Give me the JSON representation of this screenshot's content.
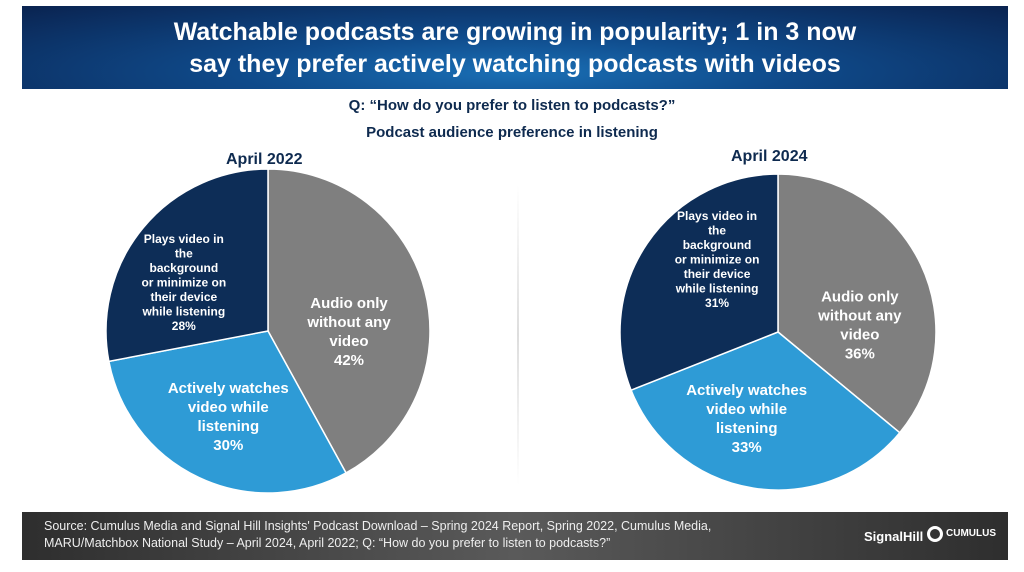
{
  "title": [
    "Watchable podcasts are growing in popularity; 1 in 3 now",
    "say they prefer actively watching podcasts with videos"
  ],
  "question": "Q: “How do you prefer to listen to podcasts?”",
  "subtitle": "Podcast audience preference in listening",
  "chart_data": [
    {
      "type": "pie",
      "title": "April 2022",
      "slices": [
        {
          "label": [
            "Audio only",
            "without any",
            "video"
          ],
          "value": 42,
          "value_label": "42%",
          "color": "#7f7f7f"
        },
        {
          "label": [
            "Actively watches",
            "video while",
            "listening"
          ],
          "value": 30,
          "value_label": "30%",
          "color": "#2e9bd6"
        },
        {
          "label": [
            "Plays video in",
            "the",
            "background",
            "or minimize on",
            "their device",
            "while listening"
          ],
          "value": 28,
          "value_label": "28%",
          "color": "#0d2d57"
        }
      ]
    },
    {
      "type": "pie",
      "title": "April 2024",
      "slices": [
        {
          "label": [
            "Audio only",
            "without any",
            "video"
          ],
          "value": 36,
          "value_label": "36%",
          "color": "#7f7f7f"
        },
        {
          "label": [
            "Actively watches",
            "video while",
            "listening"
          ],
          "value": 33,
          "value_label": "33%",
          "color": "#2e9bd6"
        },
        {
          "label": [
            "Plays video in",
            "the",
            "background",
            "or minimize on",
            "their device",
            "while listening"
          ],
          "value": 31,
          "value_label": "31%",
          "color": "#0d2d57"
        }
      ]
    }
  ],
  "footer": {
    "source": [
      "Source: Cumulus Media and Signal Hill Insights' Podcast Download – Spring 2024 Report, Spring 2022, Cumulus Media,",
      "MARU/Matchbox National Study – April 2024, April 2022; Q: “How do you prefer to listen to podcasts?”"
    ],
    "logo_signalhill": "SignalHill",
    "logo_cumulus": "CUMULUS"
  }
}
